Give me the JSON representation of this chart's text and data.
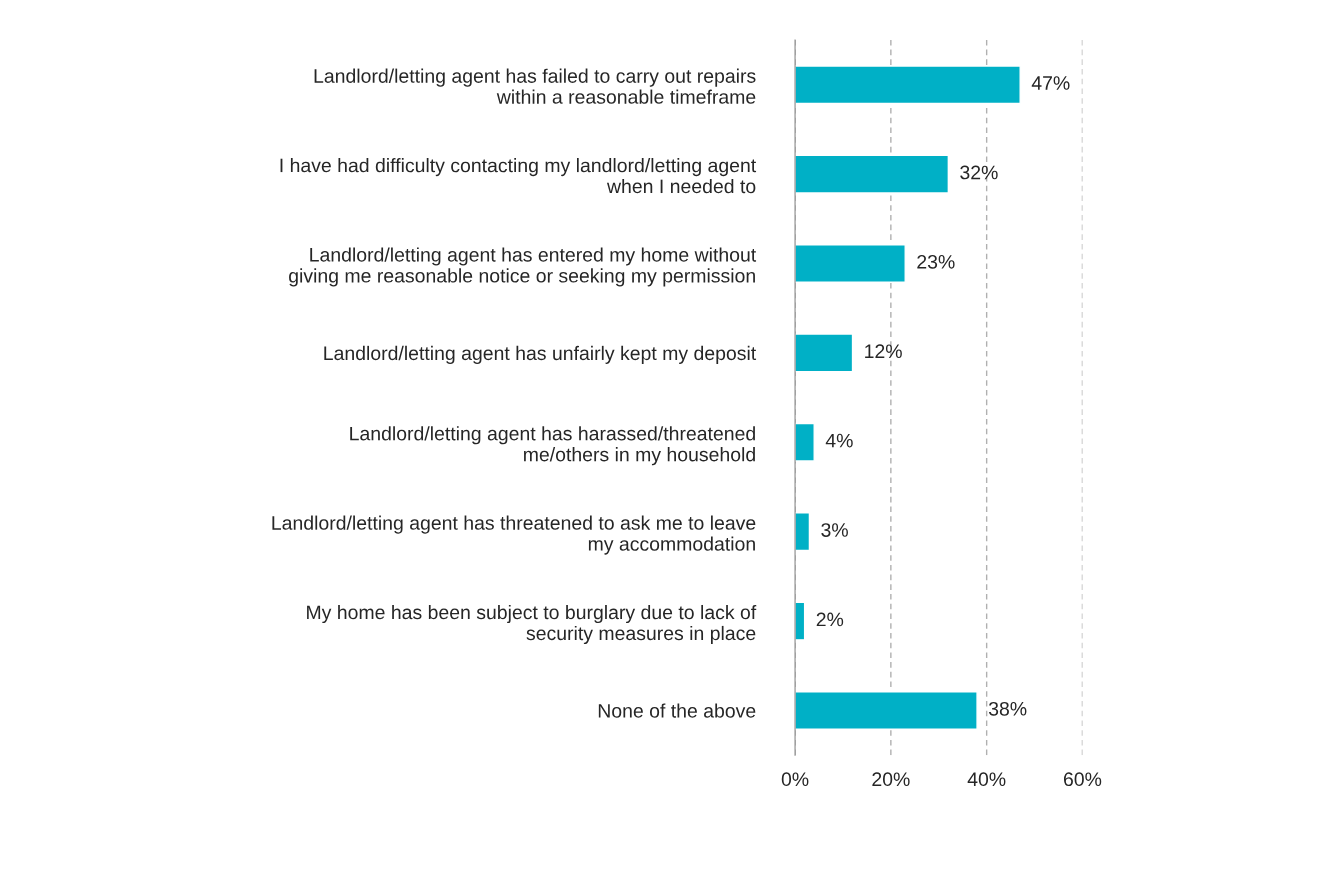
{
  "chart_data": {
    "type": "bar",
    "orientation": "horizontal",
    "categories": [
      "Landlord/letting agent has failed to carry out repairs\nwithin a reasonable timeframe",
      "I have had difficulty contacting my landlord/letting agent\nwhen I needed to",
      "Landlord/letting agent has entered my home without\ngiving me reasonable notice or seeking my permission",
      "Landlord/letting agent has unfairly kept my deposit",
      "Landlord/letting agent has harassed/threatened\nme/others in my household",
      "Landlord/letting agent has threatened to ask me to leave\nmy accommodation",
      "My home has been subject to burglary due to lack of\nsecurity measures in place",
      "None of the above"
    ],
    "values": [
      47,
      32,
      23,
      12,
      4,
      3,
      2,
      38
    ],
    "value_labels": [
      "47%",
      "32%",
      "23%",
      "12%",
      "4%",
      "3%",
      "2%",
      "38%"
    ],
    "color": "#00b0c6",
    "xlim": [
      0,
      60
    ],
    "xticks": [
      {
        "value": 0,
        "label": "0%"
      },
      {
        "value": 20,
        "label": "20%"
      },
      {
        "value": 40,
        "label": "40%"
      },
      {
        "value": 60,
        "label": "60%"
      }
    ],
    "grid": "x",
    "legend": false
  }
}
